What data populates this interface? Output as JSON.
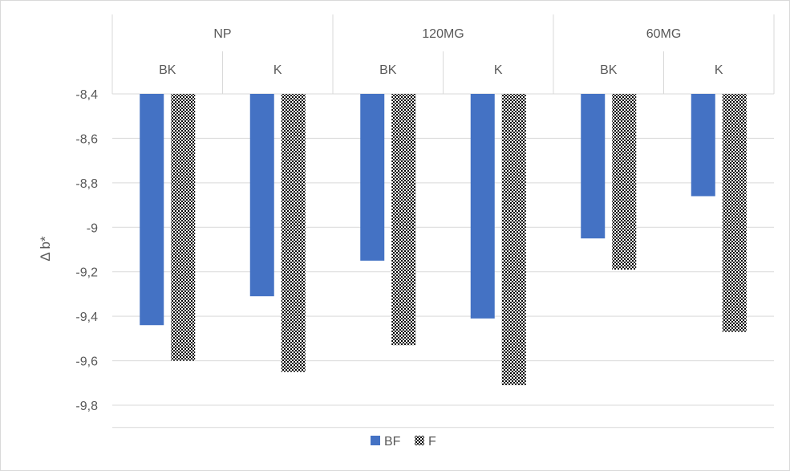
{
  "chart_data": {
    "type": "bar",
    "title": "",
    "ylabel": "Δ b*",
    "xlabel": "",
    "groups": [
      {
        "name": "NP",
        "categories": [
          "BK",
          "K"
        ]
      },
      {
        "name": "120MG",
        "categories": [
          "BK",
          "K"
        ]
      },
      {
        "name": "60MG",
        "categories": [
          "BK",
          "K"
        ]
      }
    ],
    "series": [
      {
        "name": "BF",
        "color": "#4472C4",
        "pattern": "solid",
        "values": [
          -9.44,
          -9.31,
          -9.15,
          -9.41,
          -9.05,
          -8.86
        ]
      },
      {
        "name": "F",
        "color": "#000000",
        "pattern": "dotted",
        "values": [
          -9.6,
          -9.65,
          -9.53,
          -9.71,
          -9.19,
          -9.47
        ]
      }
    ],
    "ylim": [
      -9.9,
      -8.4
    ],
    "yticks": [
      -8.4,
      -8.6,
      -8.8,
      -9.0,
      -9.2,
      -9.4,
      -9.6,
      -9.8
    ],
    "ytick_labels": [
      "-8,4",
      "-8,6",
      "-8,8",
      "-9",
      "-9,2",
      "-9,4",
      "-9,6",
      "-9,8"
    ],
    "grid": true,
    "axis_position": "top",
    "legend_position": "bottom"
  }
}
